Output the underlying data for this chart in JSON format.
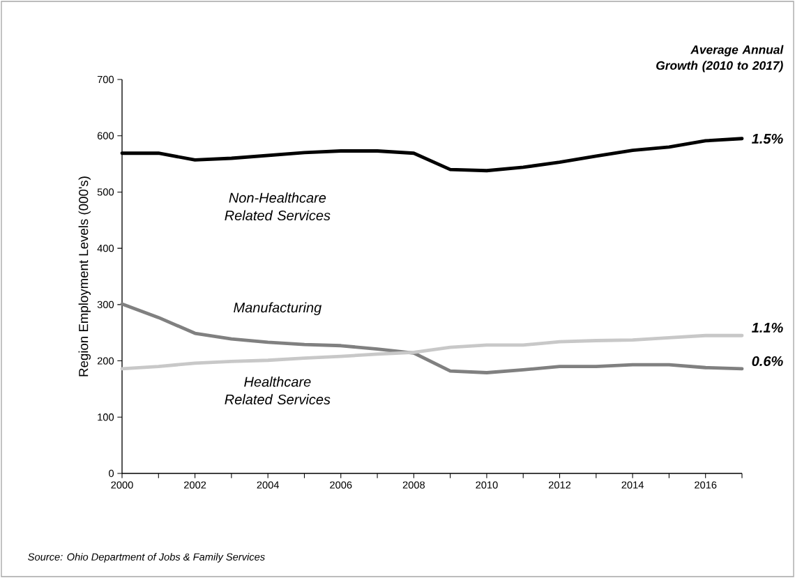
{
  "chart_data": {
    "type": "line",
    "ylabel": "Region Employment Levels (000's)",
    "x": [
      2000,
      2001,
      2002,
      2003,
      2004,
      2005,
      2006,
      2007,
      2008,
      2009,
      2010,
      2011,
      2012,
      2013,
      2014,
      2015,
      2016,
      2017
    ],
    "series": [
      {
        "name": "Non-Healthcare Related Services",
        "color": "#000000",
        "values": [
          569,
          569,
          557,
          560,
          565,
          570,
          573,
          573,
          569,
          540,
          538,
          544,
          553,
          564,
          574,
          580,
          591,
          595
        ]
      },
      {
        "name": "Manufacturing",
        "color": "#808080",
        "values": [
          301,
          277,
          249,
          239,
          233,
          229,
          227,
          221,
          214,
          182,
          179,
          184,
          190,
          190,
          193,
          193,
          188,
          186
        ]
      },
      {
        "name": "Healthcare Related Services",
        "color": "#c8c8c8",
        "values": [
          186,
          190,
          196,
          199,
          201,
          205,
          208,
          212,
          215,
          224,
          228,
          228,
          234,
          236,
          237,
          241,
          245,
          245
        ]
      }
    ],
    "xlim": [
      2000,
      2017
    ],
    "xticks": [
      2000,
      {
        "value": 2001,
        "label": null
      },
      2002,
      {
        "value": 2003,
        "label": null
      },
      2004,
      {
        "value": 2005,
        "label": null
      },
      2006,
      {
        "value": 2007,
        "label": null
      },
      2008,
      {
        "value": 2009,
        "label": null
      },
      2010,
      {
        "value": 2011,
        "label": null
      },
      2012,
      {
        "value": 2013,
        "label": null
      },
      2014,
      {
        "value": 2015,
        "label": null
      },
      2016,
      {
        "value": 2017,
        "label": null
      }
    ],
    "ylim": [
      0,
      700
    ],
    "yticks": [
      0,
      100,
      200,
      300,
      400,
      500,
      600,
      700
    ],
    "annotations": [
      "Average Annual Growth (2010 to 2017)",
      "1.5%",
      "1.1%",
      "0.6%",
      "Source: Ohio Department of Jobs & Family Services"
    ],
    "grid": false,
    "legend": false,
    "marker": "none",
    "line_style": "solid"
  }
}
